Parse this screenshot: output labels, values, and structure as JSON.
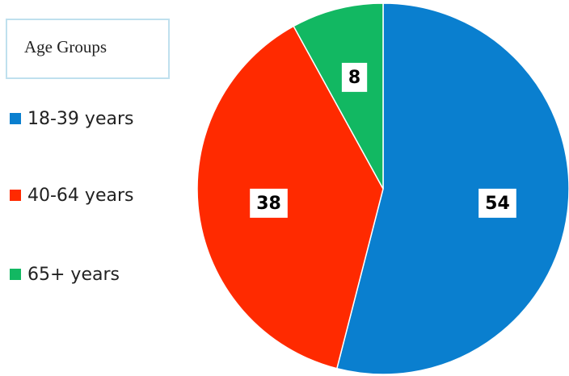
{
  "chart_data": {
    "type": "pie",
    "legend_title": "Age Groups",
    "categories": [
      "18-39 years",
      "40-64 years",
      "65+ years"
    ],
    "values": [
      54,
      38,
      8
    ],
    "colors": [
      "#0a7fcf",
      "#ff2a00",
      "#12b862"
    ]
  }
}
